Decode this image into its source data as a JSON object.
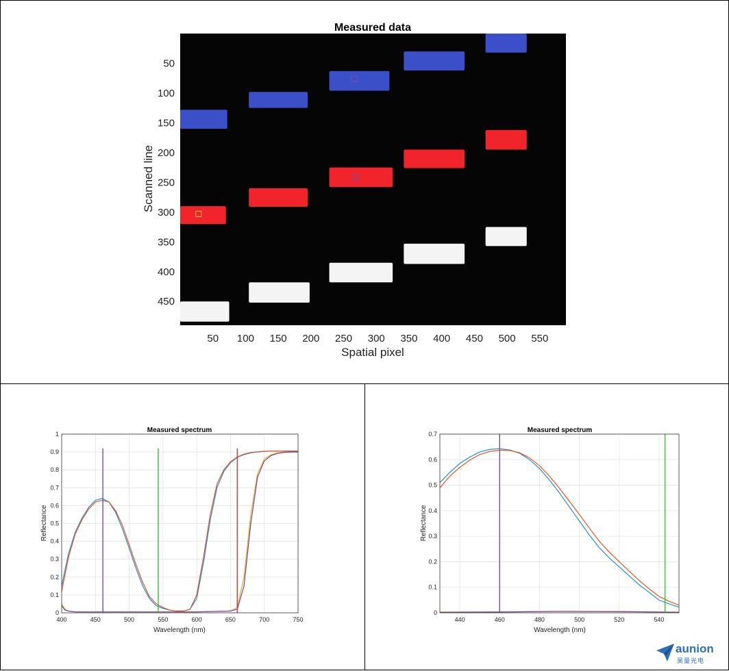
{
  "colors": {
    "blue_patch": "#3a4fc8",
    "red_patch": "#f0242a",
    "white_patch": "#f4f4f4",
    "series_blue": "#1f8fd6",
    "series_orange": "#e8531f",
    "series_yellow": "#e4b21b",
    "series_purple": "#7a3fa0",
    "marker_purple": "#6e4fb6",
    "marker_green": "#2fbf2f",
    "marker_red": "#d63a3a",
    "logo": "#2c6fb7"
  },
  "logo": {
    "icon": "paper-plane-icon",
    "text": "aunion",
    "sub": "昊量光电"
  },
  "chart_data": [
    {
      "type": "heatmap",
      "title": "Measured data",
      "xlabel": "Spatial pixel",
      "ylabel": "Scanned line",
      "xlim": [
        0,
        590
      ],
      "ylim": [
        490,
        0
      ],
      "x_ticks": [
        50,
        100,
        150,
        200,
        250,
        300,
        350,
        400,
        450,
        500,
        550
      ],
      "y_ticks": [
        50,
        100,
        150,
        200,
        250,
        300,
        350,
        400,
        450
      ],
      "patches": [
        {
          "color": "blue",
          "x": [
            0,
            72
          ],
          "y": [
            128,
            160
          ]
        },
        {
          "color": "red",
          "x": [
            0,
            70
          ],
          "y": [
            290,
            320
          ]
        },
        {
          "color": "white",
          "x": [
            0,
            75
          ],
          "y": [
            450,
            484
          ]
        },
        {
          "color": "blue",
          "x": [
            105,
            195
          ],
          "y": [
            98,
            125
          ]
        },
        {
          "color": "red",
          "x": [
            105,
            195
          ],
          "y": [
            260,
            291
          ]
        },
        {
          "color": "white",
          "x": [
            105,
            198
          ],
          "y": [
            418,
            452
          ]
        },
        {
          "color": "blue",
          "x": [
            228,
            320
          ],
          "y": [
            63,
            96
          ]
        },
        {
          "color": "red",
          "x": [
            228,
            325
          ],
          "y": [
            225,
            258
          ]
        },
        {
          "color": "white",
          "x": [
            228,
            325
          ],
          "y": [
            385,
            418
          ]
        },
        {
          "color": "blue",
          "x": [
            342,
            435
          ],
          "y": [
            30,
            62
          ]
        },
        {
          "color": "red",
          "x": [
            342,
            435
          ],
          "y": [
            195,
            226
          ]
        },
        {
          "color": "white",
          "x": [
            342,
            435
          ],
          "y": [
            353,
            387
          ]
        },
        {
          "color": "blue",
          "x": [
            467,
            530
          ],
          "y": [
            0,
            32
          ]
        },
        {
          "color": "red",
          "x": [
            467,
            530
          ],
          "y": [
            162,
            195
          ]
        },
        {
          "color": "white",
          "x": [
            467,
            530
          ],
          "y": [
            325,
            357
          ]
        }
      ],
      "markers": [
        {
          "color": "yellow",
          "x": 28,
          "y": 303
        },
        {
          "color": "purple",
          "x": 268,
          "y": 242
        },
        {
          "color": "purple",
          "x": 266,
          "y": 76
        }
      ]
    },
    {
      "type": "line",
      "title": "Measured spectrum",
      "xlabel": "Wavelength (nm)",
      "ylabel": "Reflectance",
      "xlim": [
        400,
        750
      ],
      "ylim": [
        0,
        1
      ],
      "x_ticks": [
        400,
        450,
        500,
        550,
        600,
        650,
        700,
        750
      ],
      "y_ticks": [
        0,
        0.1,
        0.2,
        0.3,
        0.4,
        0.5,
        0.6,
        0.7,
        0.8,
        0.9,
        1
      ],
      "grid": true,
      "vlines": [
        {
          "x": 461,
          "color": "purple"
        },
        {
          "x": 543,
          "color": "green"
        },
        {
          "x": 660,
          "color": "red"
        }
      ],
      "series": [
        {
          "color": "blue",
          "x": [
            400,
            410,
            420,
            430,
            440,
            450,
            460,
            470,
            480,
            490,
            500,
            510,
            520,
            530,
            540,
            550,
            560,
            570,
            580,
            590,
            600,
            610,
            620,
            630,
            640,
            650,
            660,
            670,
            680,
            690,
            700,
            710,
            720,
            730,
            740,
            750
          ],
          "y": [
            0.15,
            0.33,
            0.45,
            0.53,
            0.59,
            0.63,
            0.64,
            0.62,
            0.56,
            0.47,
            0.36,
            0.25,
            0.15,
            0.08,
            0.04,
            0.025,
            0.015,
            0.01,
            0.01,
            0.02,
            0.08,
            0.28,
            0.52,
            0.7,
            0.79,
            0.84,
            0.87,
            0.885,
            0.895,
            0.9,
            0.903,
            0.905,
            0.905,
            0.905,
            0.905,
            0.905
          ]
        },
        {
          "color": "orange",
          "x": [
            400,
            410,
            420,
            430,
            440,
            450,
            460,
            470,
            480,
            490,
            500,
            510,
            520,
            530,
            540,
            550,
            560,
            570,
            580,
            590,
            600,
            610,
            620,
            630,
            640,
            650,
            660,
            670,
            680,
            690,
            700,
            710,
            720,
            730,
            740,
            750
          ],
          "y": [
            0.12,
            0.31,
            0.44,
            0.52,
            0.58,
            0.62,
            0.63,
            0.62,
            0.57,
            0.49,
            0.38,
            0.27,
            0.17,
            0.09,
            0.05,
            0.03,
            0.015,
            0.01,
            0.01,
            0.02,
            0.1,
            0.31,
            0.55,
            0.72,
            0.8,
            0.845,
            0.872,
            0.888,
            0.897,
            0.901,
            0.904,
            0.905,
            0.905,
            0.905,
            0.905,
            0.905
          ]
        },
        {
          "color": "yellow",
          "x": [
            400,
            405,
            410,
            420,
            450,
            500,
            550,
            600,
            650,
            660,
            670,
            680,
            690,
            700,
            710,
            720,
            730,
            740,
            750
          ],
          "y": [
            0.05,
            0.02,
            0.01,
            0.005,
            0.005,
            0.005,
            0.005,
            0.005,
            0.01,
            0.03,
            0.2,
            0.55,
            0.78,
            0.86,
            0.885,
            0.895,
            0.9,
            0.9,
            0.9
          ]
        },
        {
          "color": "purple",
          "x": [
            400,
            405,
            410,
            420,
            450,
            500,
            550,
            600,
            650,
            660,
            670,
            680,
            690,
            700,
            710,
            720,
            730,
            740,
            750
          ],
          "y": [
            0.04,
            0.015,
            0.01,
            0.005,
            0.005,
            0.005,
            0.005,
            0.005,
            0.01,
            0.02,
            0.15,
            0.5,
            0.76,
            0.85,
            0.88,
            0.892,
            0.898,
            0.9,
            0.9
          ]
        }
      ]
    },
    {
      "type": "line",
      "title": "Measured spectrum",
      "xlabel": "Wavelength (nm)",
      "ylabel": "Reflectance",
      "xlim": [
        430,
        550
      ],
      "ylim": [
        0,
        0.7
      ],
      "x_ticks": [
        440,
        460,
        480,
        500,
        520,
        540
      ],
      "y_ticks": [
        0,
        0.1,
        0.2,
        0.3,
        0.4,
        0.5,
        0.6,
        0.7
      ],
      "grid": true,
      "vlines": [
        {
          "x": 460,
          "color": "purple"
        },
        {
          "x": 543,
          "color": "green"
        }
      ],
      "series": [
        {
          "color": "blue",
          "x": [
            430,
            435,
            440,
            445,
            450,
            455,
            460,
            465,
            470,
            475,
            480,
            485,
            490,
            495,
            500,
            505,
            510,
            515,
            520,
            525,
            530,
            535,
            540,
            545,
            550
          ],
          "y": [
            0.51,
            0.55,
            0.585,
            0.61,
            0.63,
            0.64,
            0.643,
            0.638,
            0.625,
            0.6,
            0.565,
            0.52,
            0.47,
            0.415,
            0.36,
            0.305,
            0.255,
            0.215,
            0.18,
            0.145,
            0.11,
            0.08,
            0.05,
            0.035,
            0.022
          ]
        },
        {
          "color": "orange",
          "x": [
            430,
            435,
            440,
            445,
            450,
            455,
            460,
            465,
            470,
            475,
            480,
            485,
            490,
            495,
            500,
            505,
            510,
            515,
            520,
            525,
            530,
            535,
            540,
            545,
            550
          ],
          "y": [
            0.49,
            0.535,
            0.57,
            0.598,
            0.62,
            0.632,
            0.637,
            0.636,
            0.627,
            0.607,
            0.576,
            0.535,
            0.488,
            0.437,
            0.385,
            0.332,
            0.28,
            0.238,
            0.2,
            0.163,
            0.127,
            0.094,
            0.064,
            0.045,
            0.03
          ]
        },
        {
          "color": "yellow",
          "x": [
            430,
            460,
            490,
            520,
            550
          ],
          "y": [
            0.003,
            0.004,
            0.005,
            0.004,
            0.003
          ]
        },
        {
          "color": "purple",
          "x": [
            430,
            460,
            490,
            520,
            550
          ],
          "y": [
            0.002,
            0.003,
            0.006,
            0.005,
            0.002
          ]
        }
      ]
    }
  ]
}
